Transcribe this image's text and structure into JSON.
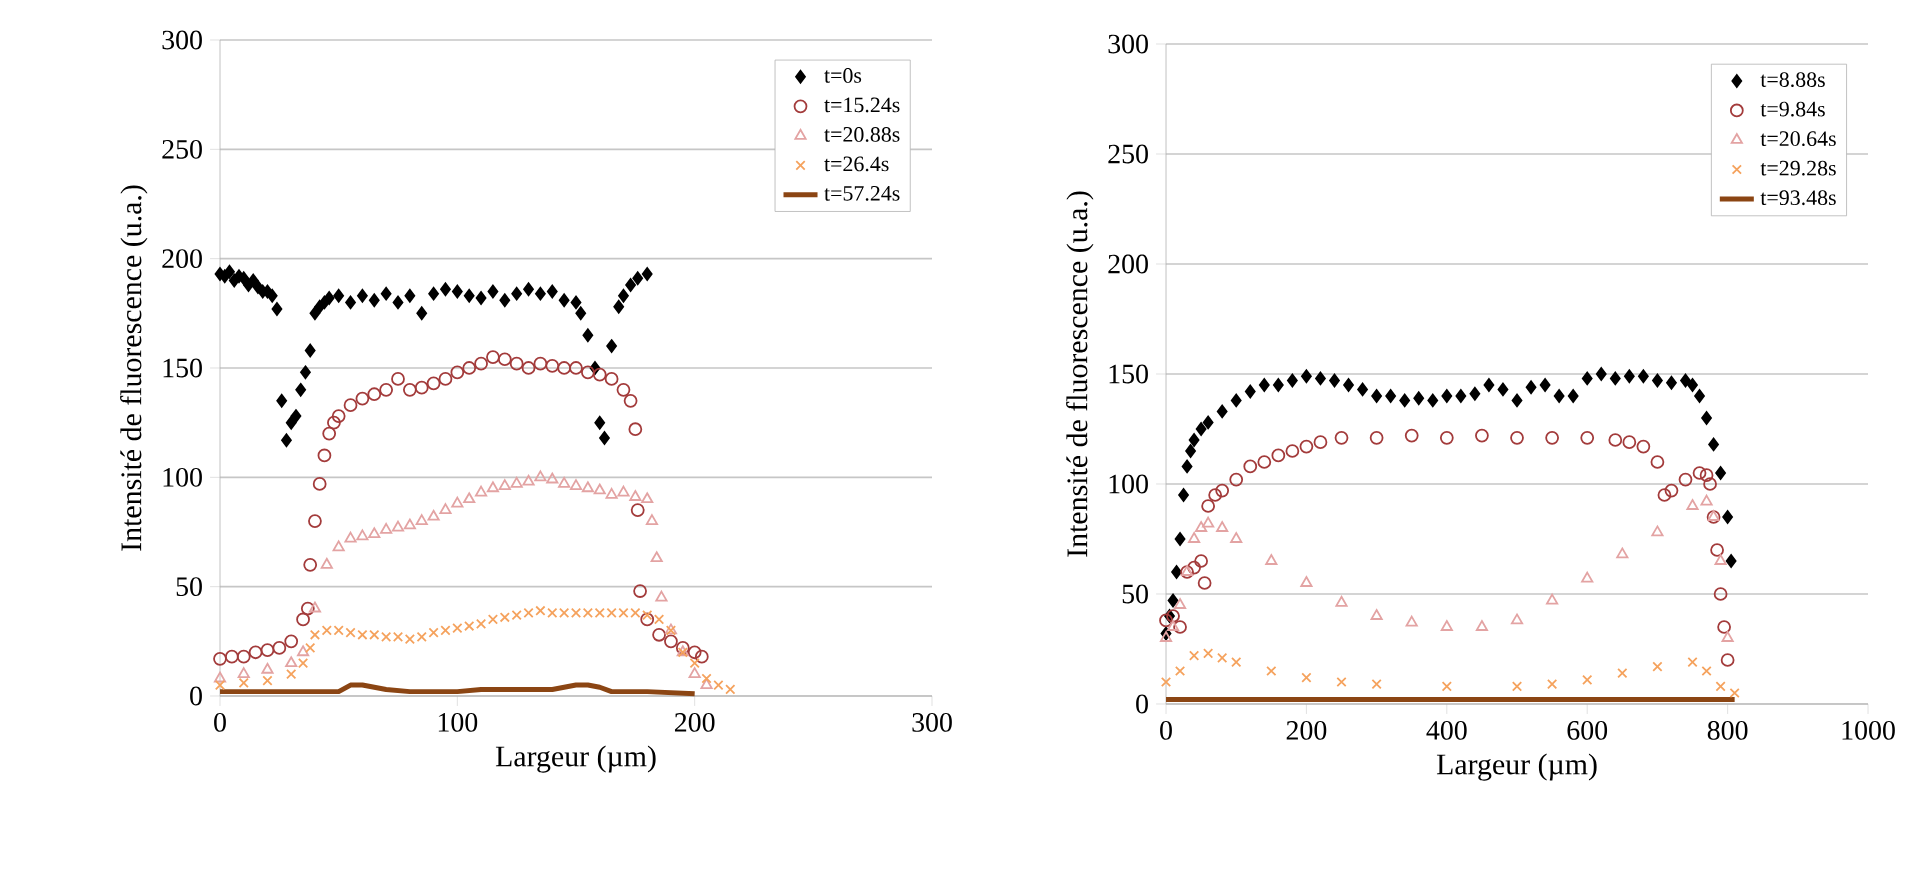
{
  "chart_data": [
    {
      "type": "scatter",
      "xlabel": "Largeur (µm)",
      "ylabel": "Intensité de fluorescence (u.a.)",
      "xlim": [
        0,
        300
      ],
      "ylim": [
        0,
        300
      ],
      "xticks": [
        0,
        100,
        200,
        300
      ],
      "yticks": [
        0,
        50,
        100,
        150,
        200,
        250,
        300
      ],
      "grid": "y",
      "legend": "top right",
      "series": [
        {
          "name": "t=0s",
          "color": "#000000",
          "marker": "diamond",
          "x": [
            0,
            2,
            4,
            6,
            8,
            10,
            12,
            14,
            16,
            18,
            20,
            22,
            24,
            26,
            28,
            30,
            32,
            34,
            36,
            38,
            40,
            42,
            44,
            46,
            50,
            55,
            60,
            65,
            70,
            75,
            80,
            85,
            90,
            95,
            100,
            105,
            110,
            115,
            120,
            125,
            130,
            135,
            140,
            145,
            150,
            152,
            155,
            158,
            160,
            162,
            165,
            168,
            170,
            173,
            176,
            180
          ],
          "values": [
            193,
            192,
            194,
            190,
            192,
            191,
            188,
            190,
            187,
            185,
            185,
            183,
            177,
            135,
            117,
            125,
            128,
            140,
            148,
            158,
            175,
            178,
            180,
            182,
            183,
            180,
            183,
            181,
            184,
            180,
            183,
            175,
            184,
            186,
            185,
            183,
            182,
            185,
            181,
            184,
            186,
            184,
            185,
            181,
            180,
            175,
            165,
            150,
            125,
            118,
            160,
            178,
            183,
            188,
            191,
            193
          ]
        },
        {
          "name": "t=15.24s",
          "color": "#a33b3b",
          "marker": "circle",
          "x": [
            0,
            5,
            10,
            15,
            20,
            25,
            30,
            35,
            37,
            38,
            40,
            42,
            44,
            46,
            48,
            50,
            55,
            60,
            65,
            70,
            75,
            80,
            85,
            90,
            95,
            100,
            105,
            110,
            115,
            120,
            125,
            130,
            135,
            140,
            145,
            150,
            155,
            160,
            165,
            170,
            173,
            175,
            176,
            177,
            180,
            185,
            190,
            195,
            200,
            203
          ],
          "values": [
            17,
            18,
            18,
            20,
            21,
            22,
            25,
            35,
            40,
            60,
            80,
            97,
            110,
            120,
            125,
            128,
            133,
            136,
            138,
            140,
            145,
            140,
            141,
            143,
            145,
            148,
            150,
            152,
            155,
            154,
            152,
            150,
            152,
            151,
            150,
            150,
            148,
            147,
            145,
            140,
            135,
            122,
            85,
            48,
            35,
            28,
            25,
            22,
            20,
            18
          ]
        },
        {
          "name": "t=20.88s",
          "color": "#e3a3a3",
          "marker": "triangle",
          "x": [
            0,
            10,
            20,
            30,
            35,
            40,
            45,
            50,
            55,
            60,
            65,
            70,
            75,
            80,
            85,
            90,
            95,
            100,
            105,
            110,
            115,
            120,
            125,
            130,
            135,
            140,
            145,
            150,
            155,
            160,
            165,
            170,
            175,
            180,
            182,
            184,
            186,
            190,
            195,
            200,
            205
          ],
          "values": [
            8,
            10,
            12,
            15,
            20,
            40,
            60,
            68,
            72,
            73,
            74,
            76,
            77,
            78,
            80,
            82,
            85,
            88,
            90,
            93,
            95,
            96,
            97,
            98,
            100,
            99,
            97,
            96,
            95,
            94,
            92,
            93,
            91,
            90,
            80,
            63,
            45,
            30,
            20,
            10,
            5
          ]
        },
        {
          "name": "t=26.4s",
          "color": "#f5a25d",
          "marker": "cross",
          "x": [
            0,
            10,
            20,
            30,
            35,
            38,
            40,
            45,
            50,
            55,
            60,
            65,
            70,
            75,
            80,
            85,
            90,
            95,
            100,
            105,
            110,
            115,
            120,
            125,
            130,
            135,
            140,
            145,
            150,
            155,
            160,
            165,
            170,
            175,
            180,
            185,
            190,
            195,
            200,
            205,
            210,
            215
          ],
          "values": [
            5,
            6,
            7,
            10,
            15,
            22,
            28,
            30,
            30,
            29,
            28,
            28,
            27,
            27,
            26,
            27,
            29,
            30,
            31,
            32,
            33,
            35,
            36,
            37,
            38,
            39,
            38,
            38,
            38,
            38,
            38,
            38,
            38,
            38,
            37,
            35,
            30,
            20,
            15,
            8,
            5,
            3
          ]
        },
        {
          "name": "t=57.24s",
          "color": "#8b4513",
          "type": "line",
          "marker": "none",
          "x": [
            0,
            20,
            40,
            50,
            55,
            60,
            65,
            70,
            80,
            90,
            100,
            110,
            120,
            130,
            140,
            145,
            150,
            155,
            160,
            165,
            180,
            200
          ],
          "values": [
            2,
            2,
            2,
            2,
            5,
            5,
            4,
            3,
            2,
            2,
            2,
            3,
            3,
            3,
            3,
            4,
            5,
            5,
            4,
            2,
            2,
            1
          ]
        }
      ]
    },
    {
      "type": "scatter",
      "xlabel": "Largeur (µm)",
      "ylabel": "Intensité de fluorescence (u.a.)",
      "xlim": [
        0,
        1000
      ],
      "ylim": [
        0,
        300
      ],
      "xticks": [
        0,
        200,
        400,
        600,
        800,
        1000
      ],
      "yticks": [
        0,
        50,
        100,
        150,
        200,
        250,
        300
      ],
      "grid": "y",
      "legend": "top right",
      "series": [
        {
          "name": "t=8.88s",
          "color": "#000000",
          "marker": "diamond",
          "x": [
            0,
            5,
            10,
            15,
            20,
            25,
            30,
            35,
            40,
            50,
            60,
            80,
            100,
            120,
            140,
            160,
            180,
            200,
            220,
            240,
            260,
            280,
            300,
            320,
            340,
            360,
            380,
            400,
            420,
            440,
            460,
            480,
            500,
            520,
            540,
            560,
            580,
            600,
            620,
            640,
            660,
            680,
            700,
            720,
            740,
            750,
            760,
            770,
            780,
            790,
            800,
            805
          ],
          "values": [
            32,
            40,
            47,
            60,
            75,
            95,
            108,
            115,
            120,
            125,
            128,
            133,
            138,
            142,
            145,
            145,
            147,
            149,
            148,
            147,
            145,
            143,
            140,
            140,
            138,
            139,
            138,
            140,
            140,
            141,
            145,
            143,
            138,
            144,
            145,
            140,
            140,
            148,
            150,
            148,
            149,
            149,
            147,
            146,
            147,
            145,
            140,
            130,
            118,
            105,
            85,
            65
          ]
        },
        {
          "name": "t=9.84s",
          "color": "#a33b3b",
          "marker": "circle",
          "x": [
            0,
            10,
            20,
            30,
            40,
            50,
            55,
            60,
            70,
            80,
            100,
            120,
            140,
            160,
            180,
            200,
            220,
            250,
            300,
            350,
            400,
            450,
            500,
            550,
            600,
            640,
            660,
            680,
            700,
            710,
            720,
            740,
            760,
            770,
            775,
            780,
            785,
            790,
            795,
            800
          ],
          "values": [
            38,
            40,
            35,
            60,
            62,
            65,
            55,
            90,
            95,
            97,
            102,
            108,
            110,
            113,
            115,
            117,
            119,
            121,
            121,
            122,
            121,
            122,
            121,
            121,
            121,
            120,
            119,
            117,
            110,
            95,
            97,
            102,
            105,
            104,
            100,
            85,
            70,
            50,
            35,
            20
          ]
        },
        {
          "name": "t=20.64s",
          "color": "#e3a3a3",
          "marker": "triangle",
          "x": [
            0,
            10,
            20,
            30,
            40,
            50,
            60,
            80,
            100,
            150,
            200,
            250,
            300,
            350,
            400,
            450,
            500,
            550,
            600,
            650,
            700,
            750,
            770,
            780,
            790,
            800
          ],
          "values": [
            30,
            35,
            45,
            60,
            75,
            80,
            82,
            80,
            75,
            65,
            55,
            46,
            40,
            37,
            35,
            35,
            38,
            47,
            57,
            68,
            78,
            90,
            92,
            85,
            65,
            30
          ]
        },
        {
          "name": "t=29.28s",
          "color": "#f5a25d",
          "marker": "cross",
          "x": [
            0,
            20,
            40,
            60,
            80,
            100,
            150,
            200,
            250,
            300,
            400,
            500,
            550,
            600,
            650,
            700,
            750,
            770,
            790,
            810
          ],
          "values": [
            10,
            15,
            22,
            23,
            21,
            19,
            15,
            12,
            10,
            9,
            8,
            8,
            9,
            11,
            14,
            17,
            19,
            15,
            8,
            5
          ]
        },
        {
          "name": "t=93.48s",
          "color": "#8b4513",
          "type": "line",
          "marker": "none",
          "x": [
            0,
            100,
            200,
            300,
            400,
            500,
            600,
            700,
            800,
            810
          ],
          "values": [
            2,
            2,
            2,
            2,
            2,
            2,
            2,
            2,
            2,
            2
          ]
        }
      ]
    }
  ]
}
